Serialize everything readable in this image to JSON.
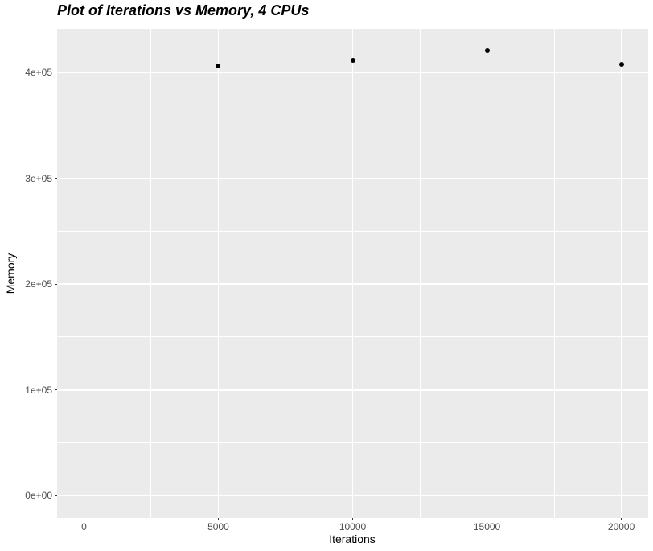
{
  "chart_data": {
    "type": "scatter",
    "title": "Plot of Iterations vs Memory, 4 CPUs",
    "xlabel": "Iterations",
    "ylabel": "Memory",
    "x": [
      5000,
      10000,
      15000,
      20000
    ],
    "y": [
      406300,
      411400,
      420500,
      407800
    ],
    "xlim": [
      -1000,
      21000
    ],
    "ylim": [
      -21000,
      441000
    ],
    "x_ticks": [
      {
        "value": 0,
        "label": "0"
      },
      {
        "value": 5000,
        "label": "5000"
      },
      {
        "value": 10000,
        "label": "10000"
      },
      {
        "value": 15000,
        "label": "15000"
      },
      {
        "value": 20000,
        "label": "20000"
      }
    ],
    "y_ticks": [
      {
        "value": 0,
        "label": "0e+00"
      },
      {
        "value": 100000,
        "label": "1e+05"
      },
      {
        "value": 200000,
        "label": "2e+05"
      },
      {
        "value": 300000,
        "label": "3e+05"
      },
      {
        "value": 400000,
        "label": "4e+05"
      }
    ],
    "x_minor": [
      2500,
      7500,
      12500,
      17500
    ],
    "y_minor": [
      50000,
      150000,
      250000,
      350000
    ],
    "grid": true,
    "legend": "none",
    "colors": {
      "page_bg": "#FFFFFF",
      "panel_bg": "#EBEBEB",
      "grid_major": "#FFFFFF",
      "grid_minor": "#FFFFFF",
      "point": "#000000",
      "tick_label": "#4D4D4D",
      "axis_title": "#000000",
      "title_color": "#000000",
      "tick_mark": "#333333"
    }
  }
}
